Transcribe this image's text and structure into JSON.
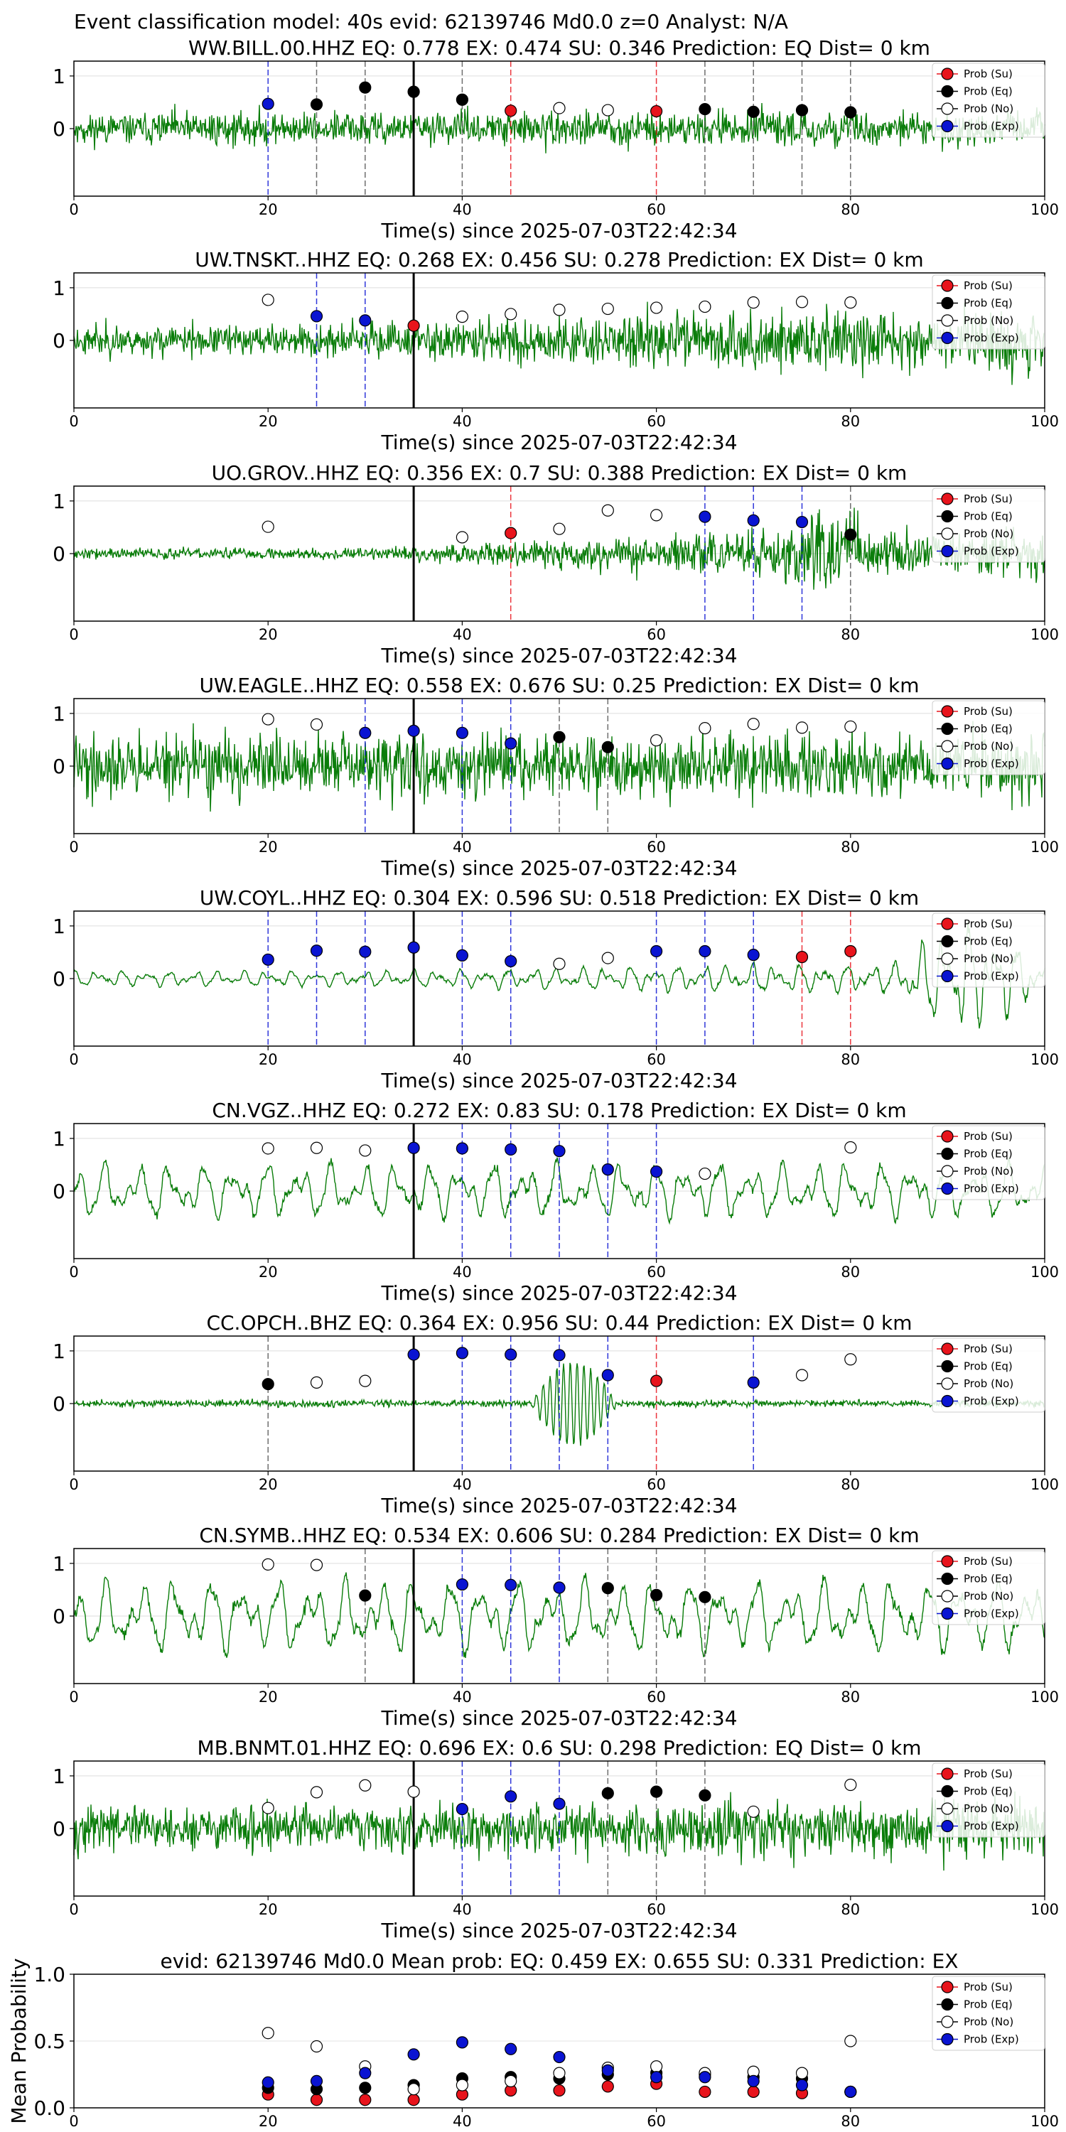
{
  "figure": {
    "title": "Event classification model: 40s evid: 62139746 Md0.0 z=0 Analyst: N/A",
    "legend": [
      "Prob (Su)",
      "Prob (Eq)",
      "Prob (No)",
      "Prob (Exp)"
    ],
    "colors": {
      "su": "#e8141c",
      "eq": "#000000",
      "no": "#ffffff",
      "exp": "#0a14d2",
      "trace": "#0a7d0a",
      "arrival": "#000000"
    },
    "xlabel": "Time(s) since 2025-07-03T22:42:34",
    "xlim": [
      0,
      100
    ],
    "xticks": [
      "0",
      "20",
      "40",
      "60",
      "80",
      "100"
    ],
    "yticks": [
      "1",
      "0"
    ],
    "arrival_time": 35
  },
  "chart_data": [
    {
      "type": "scatter",
      "title": "WW.BILL.00.HHZ   EQ: 0.778  EX: 0.474  SU: 0.346   Prediction: EQ    Dist= 0 km",
      "points": [
        {
          "x": 20,
          "y": 0.47,
          "cls": "exp"
        },
        {
          "x": 25,
          "y": 0.46,
          "cls": "eq"
        },
        {
          "x": 30,
          "y": 0.78,
          "cls": "eq"
        },
        {
          "x": 35,
          "y": 0.7,
          "cls": "eq"
        },
        {
          "x": 40,
          "y": 0.55,
          "cls": "eq"
        },
        {
          "x": 45,
          "y": 0.34,
          "cls": "su"
        },
        {
          "x": 50,
          "y": 0.39,
          "cls": "no"
        },
        {
          "x": 55,
          "y": 0.35,
          "cls": "no"
        },
        {
          "x": 60,
          "y": 0.33,
          "cls": "su"
        },
        {
          "x": 65,
          "y": 0.37,
          "cls": "eq"
        },
        {
          "x": 70,
          "y": 0.32,
          "cls": "eq"
        },
        {
          "x": 75,
          "y": 0.35,
          "cls": "eq"
        },
        {
          "x": 80,
          "y": 0.31,
          "cls": "eq"
        }
      ]
    },
    {
      "type": "scatter",
      "title": "UW.TNSKT..HHZ   EQ: 0.268  EX: 0.456  SU: 0.278   Prediction: EX    Dist= 0 km",
      "points": [
        {
          "x": 20,
          "y": 0.77,
          "cls": "no"
        },
        {
          "x": 25,
          "y": 0.46,
          "cls": "exp"
        },
        {
          "x": 30,
          "y": 0.38,
          "cls": "exp"
        },
        {
          "x": 35,
          "y": 0.28,
          "cls": "su"
        },
        {
          "x": 40,
          "y": 0.45,
          "cls": "no"
        },
        {
          "x": 45,
          "y": 0.5,
          "cls": "no"
        },
        {
          "x": 50,
          "y": 0.58,
          "cls": "no"
        },
        {
          "x": 55,
          "y": 0.6,
          "cls": "no"
        },
        {
          "x": 60,
          "y": 0.62,
          "cls": "no"
        },
        {
          "x": 65,
          "y": 0.64,
          "cls": "no"
        },
        {
          "x": 70,
          "y": 0.72,
          "cls": "no"
        },
        {
          "x": 75,
          "y": 0.73,
          "cls": "no"
        },
        {
          "x": 80,
          "y": 0.72,
          "cls": "no"
        }
      ]
    },
    {
      "type": "scatter",
      "title": "UO.GROV..HHZ   EQ: 0.356  EX: 0.7  SU: 0.388   Prediction: EX    Dist= 0 km",
      "points": [
        {
          "x": 20,
          "y": 0.51,
          "cls": "no"
        },
        {
          "x": 40,
          "y": 0.31,
          "cls": "no"
        },
        {
          "x": 45,
          "y": 0.39,
          "cls": "su"
        },
        {
          "x": 50,
          "y": 0.47,
          "cls": "no"
        },
        {
          "x": 55,
          "y": 0.82,
          "cls": "no"
        },
        {
          "x": 60,
          "y": 0.73,
          "cls": "no"
        },
        {
          "x": 65,
          "y": 0.7,
          "cls": "exp"
        },
        {
          "x": 70,
          "y": 0.63,
          "cls": "exp"
        },
        {
          "x": 75,
          "y": 0.6,
          "cls": "exp"
        },
        {
          "x": 80,
          "y": 0.36,
          "cls": "eq"
        }
      ]
    },
    {
      "type": "scatter",
      "title": "UW.EAGLE..HHZ   EQ: 0.558  EX: 0.676  SU: 0.25   Prediction: EX    Dist= 0 km",
      "points": [
        {
          "x": 20,
          "y": 0.89,
          "cls": "no"
        },
        {
          "x": 25,
          "y": 0.79,
          "cls": "no"
        },
        {
          "x": 30,
          "y": 0.63,
          "cls": "exp"
        },
        {
          "x": 35,
          "y": 0.67,
          "cls": "exp"
        },
        {
          "x": 40,
          "y": 0.63,
          "cls": "exp"
        },
        {
          "x": 45,
          "y": 0.43,
          "cls": "exp"
        },
        {
          "x": 50,
          "y": 0.55,
          "cls": "eq"
        },
        {
          "x": 55,
          "y": 0.36,
          "cls": "eq"
        },
        {
          "x": 60,
          "y": 0.49,
          "cls": "no"
        },
        {
          "x": 65,
          "y": 0.72,
          "cls": "no"
        },
        {
          "x": 70,
          "y": 0.8,
          "cls": "no"
        },
        {
          "x": 75,
          "y": 0.73,
          "cls": "no"
        },
        {
          "x": 80,
          "y": 0.75,
          "cls": "no"
        }
      ]
    },
    {
      "type": "scatter",
      "title": "UW.COYL..HHZ   EQ: 0.304  EX: 0.596  SU: 0.518   Prediction: EX    Dist= 0 km",
      "points": [
        {
          "x": 20,
          "y": 0.36,
          "cls": "exp"
        },
        {
          "x": 25,
          "y": 0.53,
          "cls": "exp"
        },
        {
          "x": 30,
          "y": 0.51,
          "cls": "exp"
        },
        {
          "x": 35,
          "y": 0.59,
          "cls": "exp"
        },
        {
          "x": 40,
          "y": 0.44,
          "cls": "exp"
        },
        {
          "x": 45,
          "y": 0.33,
          "cls": "exp"
        },
        {
          "x": 50,
          "y": 0.28,
          "cls": "no"
        },
        {
          "x": 55,
          "y": 0.39,
          "cls": "no"
        },
        {
          "x": 60,
          "y": 0.52,
          "cls": "exp"
        },
        {
          "x": 65,
          "y": 0.52,
          "cls": "exp"
        },
        {
          "x": 70,
          "y": 0.45,
          "cls": "exp"
        },
        {
          "x": 75,
          "y": 0.41,
          "cls": "su"
        },
        {
          "x": 80,
          "y": 0.52,
          "cls": "su"
        }
      ]
    },
    {
      "type": "scatter",
      "title": "CN.VGZ..HHZ   EQ: 0.272  EX: 0.83  SU: 0.178   Prediction: EX    Dist= 0 km",
      "points": [
        {
          "x": 20,
          "y": 0.81,
          "cls": "no"
        },
        {
          "x": 25,
          "y": 0.82,
          "cls": "no"
        },
        {
          "x": 30,
          "y": 0.77,
          "cls": "no"
        },
        {
          "x": 35,
          "y": 0.82,
          "cls": "exp"
        },
        {
          "x": 40,
          "y": 0.81,
          "cls": "exp"
        },
        {
          "x": 45,
          "y": 0.79,
          "cls": "exp"
        },
        {
          "x": 50,
          "y": 0.76,
          "cls": "exp"
        },
        {
          "x": 55,
          "y": 0.41,
          "cls": "exp"
        },
        {
          "x": 60,
          "y": 0.37,
          "cls": "exp"
        },
        {
          "x": 65,
          "y": 0.33,
          "cls": "no"
        },
        {
          "x": 80,
          "y": 0.83,
          "cls": "no"
        }
      ]
    },
    {
      "type": "scatter",
      "title": "CC.OPCH..BHZ   EQ: 0.364  EX: 0.956  SU: 0.44   Prediction: EX    Dist= 0 km",
      "points": [
        {
          "x": 20,
          "y": 0.37,
          "cls": "eq"
        },
        {
          "x": 25,
          "y": 0.4,
          "cls": "no"
        },
        {
          "x": 30,
          "y": 0.43,
          "cls": "no"
        },
        {
          "x": 35,
          "y": 0.93,
          "cls": "exp"
        },
        {
          "x": 40,
          "y": 0.96,
          "cls": "exp"
        },
        {
          "x": 45,
          "y": 0.93,
          "cls": "exp"
        },
        {
          "x": 50,
          "y": 0.92,
          "cls": "exp"
        },
        {
          "x": 55,
          "y": 0.54,
          "cls": "exp"
        },
        {
          "x": 60,
          "y": 0.43,
          "cls": "su"
        },
        {
          "x": 70,
          "y": 0.4,
          "cls": "exp"
        },
        {
          "x": 75,
          "y": 0.54,
          "cls": "no"
        },
        {
          "x": 80,
          "y": 0.84,
          "cls": "no"
        }
      ]
    },
    {
      "type": "scatter",
      "title": "CN.SYMB..HHZ   EQ: 0.534  EX: 0.606  SU: 0.284   Prediction: EX    Dist= 0 km",
      "points": [
        {
          "x": 20,
          "y": 0.98,
          "cls": "no"
        },
        {
          "x": 25,
          "y": 0.97,
          "cls": "no"
        },
        {
          "x": 30,
          "y": 0.39,
          "cls": "eq"
        },
        {
          "x": 40,
          "y": 0.6,
          "cls": "exp"
        },
        {
          "x": 45,
          "y": 0.59,
          "cls": "exp"
        },
        {
          "x": 50,
          "y": 0.54,
          "cls": "exp"
        },
        {
          "x": 55,
          "y": 0.53,
          "cls": "eq"
        },
        {
          "x": 60,
          "y": 0.4,
          "cls": "eq"
        },
        {
          "x": 65,
          "y": 0.36,
          "cls": "eq"
        }
      ]
    },
    {
      "type": "scatter",
      "title": "MB.BNMT.01.HHZ   EQ: 0.696  EX: 0.6  SU: 0.298   Prediction: EQ    Dist= 0 km",
      "points": [
        {
          "x": 20,
          "y": 0.39,
          "cls": "no"
        },
        {
          "x": 25,
          "y": 0.69,
          "cls": "no"
        },
        {
          "x": 30,
          "y": 0.82,
          "cls": "no"
        },
        {
          "x": 35,
          "y": 0.7,
          "cls": "no"
        },
        {
          "x": 40,
          "y": 0.37,
          "cls": "exp"
        },
        {
          "x": 45,
          "y": 0.61,
          "cls": "exp"
        },
        {
          "x": 50,
          "y": 0.47,
          "cls": "exp"
        },
        {
          "x": 55,
          "y": 0.67,
          "cls": "eq"
        },
        {
          "x": 60,
          "y": 0.7,
          "cls": "eq"
        },
        {
          "x": 65,
          "y": 0.63,
          "cls": "eq"
        },
        {
          "x": 70,
          "y": 0.32,
          "cls": "no"
        },
        {
          "x": 80,
          "y": 0.83,
          "cls": "no"
        }
      ]
    },
    {
      "type": "scatter",
      "title": "evid: 62139746  Md0.0   Mean prob:    EQ: 0.459  EX: 0.655  SU: 0.331   Prediction: EX",
      "ylabel": "Mean Probability",
      "ylim": [
        0,
        1
      ],
      "yticks": [
        "0.0",
        "0.5",
        "1.0"
      ],
      "series": [
        {
          "name": "Prob (Su)",
          "cls": "su",
          "x": [
            20,
            25,
            30,
            35,
            40,
            45,
            50,
            55,
            60,
            65,
            70,
            75,
            80
          ],
          "y": [
            0.1,
            0.06,
            0.06,
            0.06,
            0.1,
            0.13,
            0.13,
            0.16,
            0.18,
            0.12,
            0.12,
            0.11,
            0.12
          ]
        },
        {
          "name": "Prob (Eq)",
          "cls": "eq",
          "x": [
            20,
            25,
            30,
            35,
            40,
            45,
            50,
            55,
            60,
            65,
            70,
            75,
            80
          ],
          "y": [
            0.15,
            0.14,
            0.15,
            0.17,
            0.22,
            0.23,
            0.22,
            0.25,
            0.26,
            0.25,
            0.23,
            0.22,
            0.12
          ]
        },
        {
          "name": "Prob (No)",
          "cls": "no",
          "x": [
            20,
            25,
            30,
            35,
            40,
            45,
            50,
            55,
            60,
            65,
            70,
            75,
            80
          ],
          "y": [
            0.56,
            0.46,
            0.31,
            0.14,
            0.17,
            0.2,
            0.26,
            0.3,
            0.31,
            0.26,
            0.27,
            0.26,
            0.5
          ]
        },
        {
          "name": "Prob (Exp)",
          "cls": "exp",
          "x": [
            20,
            25,
            30,
            35,
            40,
            45,
            50,
            55,
            60,
            65,
            70,
            75,
            80
          ],
          "y": [
            0.19,
            0.2,
            0.26,
            0.4,
            0.49,
            0.44,
            0.38,
            0.28,
            0.23,
            0.23,
            0.2,
            0.17,
            0.12
          ]
        }
      ]
    }
  ]
}
